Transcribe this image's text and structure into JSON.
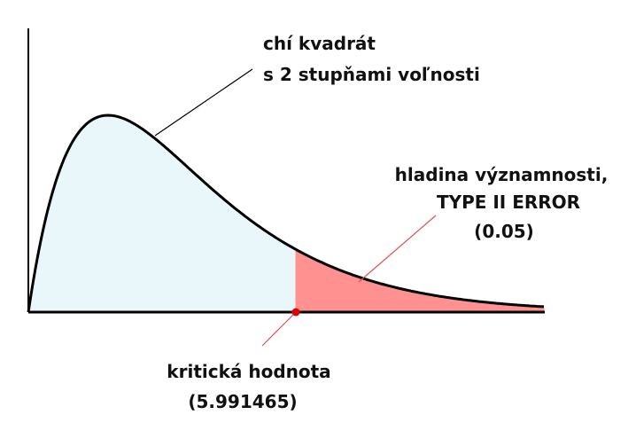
{
  "colors": {
    "background": "#ffffff",
    "axis": "#000000",
    "curve": "#000000",
    "body_fill": "#eaf7fa",
    "tail_fill": "#ff9191",
    "critical_point": "#e00000",
    "leader_line_black": "#000000",
    "leader_line_red": "#e05050"
  },
  "labels": {
    "curve_line1": "chí kvadrát",
    "curve_line2": "s 2 stupňami voľnosti",
    "tail_line1": "hladina významnosti,",
    "tail_line2": "TYPE II ERROR",
    "tail_line3": "(0.05)",
    "critical_line1": "kritická hodnota",
    "critical_line2": "(5.991465)"
  },
  "distribution": {
    "degrees_of_freedom": 2,
    "critical_value": 5.991465,
    "significance_level": 0.05
  }
}
